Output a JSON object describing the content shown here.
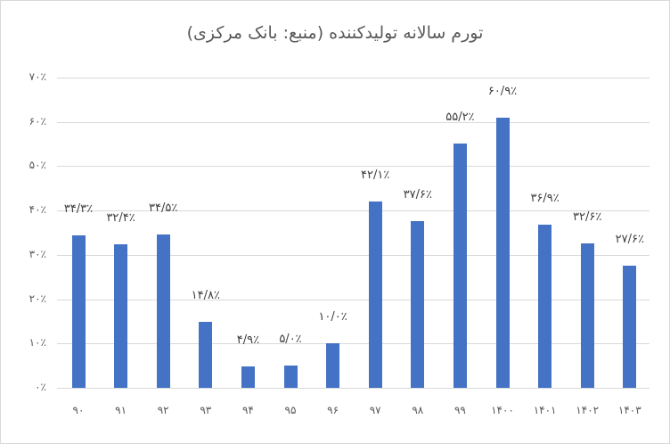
{
  "chart_data": {
    "type": "bar",
    "title": "تورم سالانه تولیدکننده (منبع: بانک  مرکزی)",
    "xlabel": "",
    "ylabel": "",
    "ylim": [
      0,
      70
    ],
    "grid": true,
    "legend": "none",
    "categories": [
      "۹۰",
      "۹۱",
      "۹۲",
      "۹۳",
      "۹۴",
      "۹۵",
      "۹۶",
      "۹۷",
      "۹۸",
      "۹۹",
      "۱۴۰۰",
      "۱۴۰۱",
      "۱۴۰۲",
      "۱۴۰۳"
    ],
    "values": [
      34.3,
      32.4,
      34.5,
      14.8,
      4.9,
      5.0,
      10.0,
      42.1,
      37.6,
      55.2,
      60.9,
      36.9,
      32.6,
      27.6
    ],
    "data_labels": [
      "۳۴/۳٪",
      "۳۲/۴٪",
      "۳۴/۵٪",
      "۱۴/۸٪",
      "۴/۹٪",
      "۵/۰٪",
      "۱۰/۰٪",
      "۴۲/۱٪",
      "۳۷/۶٪",
      "۵۵/۲٪",
      "۶۰/۹٪",
      "۳۶/۹٪",
      "۳۲/۶٪",
      "۲۷/۶٪"
    ],
    "y_ticks": [
      "۰٪",
      "۱۰٪",
      "۲۰٪",
      "۳۰٪",
      "۴۰٪",
      "۵۰٪",
      "۶۰٪",
      "۷۰٪"
    ],
    "y_tick_values": [
      0,
      10,
      20,
      30,
      40,
      50,
      60,
      70
    ],
    "bar_color": "#4472c4"
  }
}
